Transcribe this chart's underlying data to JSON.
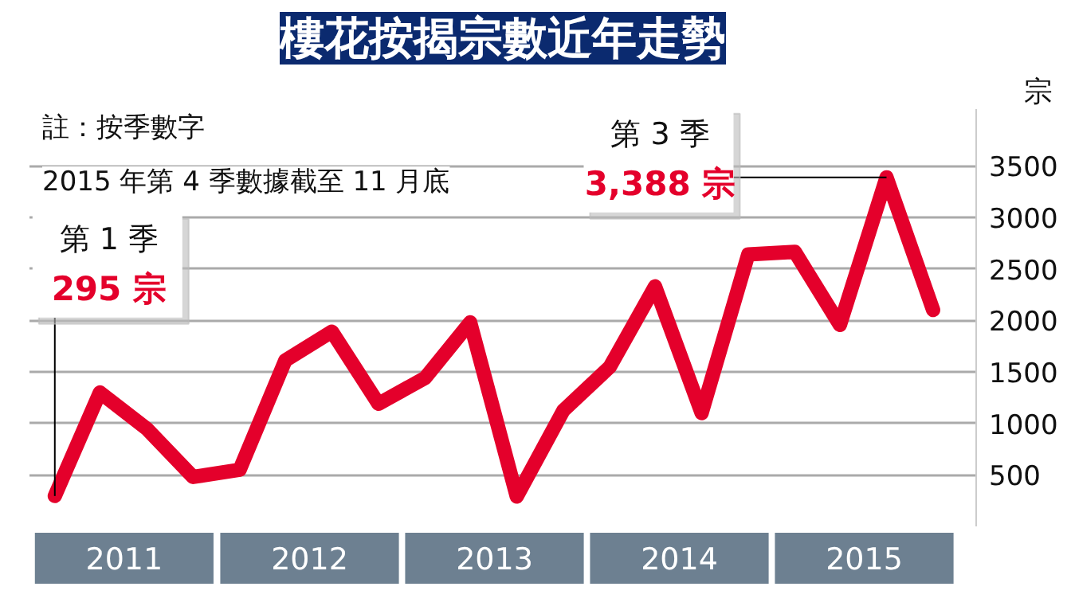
{
  "chart_data": {
    "type": "line",
    "title": "樓花按揭宗數近年走勢",
    "ylabel": "宗",
    "x": [
      "2011-02-15",
      "2011-05-15",
      "2011-08-15",
      "2011-11-15",
      "2012-02-15",
      "2012-05-15",
      "2012-08-15",
      "2012-11-15",
      "2013-02-15",
      "2013-05-15",
      "2013-08-15",
      "2013-11-15",
      "2014-02-15",
      "2014-05-15",
      "2014-08-15",
      "2014-11-15",
      "2015-02-15",
      "2015-05-15",
      "2015-08-15",
      "2015-11-15"
    ],
    "series": [
      {
        "color": "#e4002b",
        "values": [
          295,
          1300,
          950,
          480,
          550,
          1610,
          1890,
          1190,
          1440,
          1980,
          290,
          1125,
          1550,
          2330,
          1100,
          2640,
          2665,
          1955,
          3388,
          2100
        ]
      }
    ],
    "xlim": [
      "2010-12-27",
      "2016-02-08"
    ],
    "xticks": [
      {
        "value": "2011-07-02",
        "label": "2011"
      },
      {
        "value": "2012-07-02",
        "label": "2012"
      },
      {
        "value": "2013-07-02",
        "label": "2013"
      },
      {
        "value": "2014-07-02",
        "label": "2014"
      },
      {
        "value": "2015-07-02",
        "label": "2015"
      }
    ],
    "ylim": [
      0,
      4050
    ],
    "yticks": [
      500,
      1000,
      1500,
      2000,
      2500,
      3000,
      3500
    ],
    "grid": "y",
    "tick_labels": "xy",
    "marker": "none",
    "line_style": "solid",
    "annotations": [
      "註：按季數字",
      "2015 年第 4 季數據截至 11 月底",
      {
        "text": "第 1 季\n295 宗",
        "x": "2011-02-15",
        "y": 295
      },
      {
        "text": "第 3 季\n3,388 宗",
        "x": "2015-08-15",
        "y": 3388
      }
    ]
  }
}
